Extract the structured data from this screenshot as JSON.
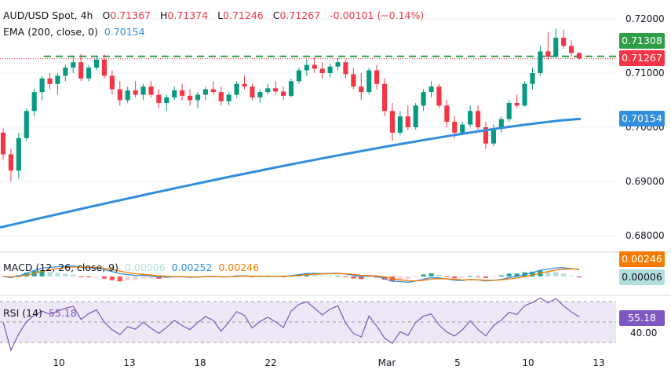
{
  "header": {
    "symbol": "AUD/USD Spot, 4h",
    "o_label": "O",
    "o_value": "0.71367",
    "h_label": "H",
    "h_value": "0.71374",
    "l_label": "L",
    "l_value": "0.71246",
    "c_label": "C",
    "c_value": "0.71267",
    "change": "-0.00101 (−0.14%)"
  },
  "ema": {
    "label": "EMA (200, close, 0)",
    "value": "0.70154"
  },
  "macd": {
    "label": "MACD (12, 26, close, 9)",
    "hist_value": "0.00006",
    "macd_value": "0.00252",
    "signal_value": "0.00246"
  },
  "rsi": {
    "label": "RSI (14)",
    "value": "55.18",
    "axis_tick": "40.00"
  },
  "price_tags": {
    "resistance": "0.71308",
    "close": "0.71267",
    "ema": "0.70154",
    "macd_signal": "0.00246",
    "macd_hist": "0.00006",
    "rsi": "55.18"
  },
  "colors": {
    "up": "#089981",
    "down": "#f23645",
    "ema": "#2f8fdd",
    "resistance": "#2e9e47",
    "macd": "#2f8fdd",
    "signal": "#f57c00",
    "rsi": "#7e57c2",
    "rsi_band": "#ede7f6"
  },
  "chart_data": {
    "type": "candlestick",
    "title": "AUD/USD Spot, 4h",
    "price_axis_ticks": [
      "0.72000",
      "0.71000",
      "0.70000",
      "0.69000",
      "0.68000"
    ],
    "time_axis_ticks": [
      "10",
      "13",
      "18",
      "22",
      "Mar",
      "5",
      "10",
      "13"
    ],
    "price_range": [
      0.6775,
      0.7225
    ],
    "resistance_level": 0.71308,
    "last_close": 0.71267,
    "ema200_last": 0.70154,
    "candles": [
      [
        0.699,
        0.6998,
        0.694,
        0.695
      ],
      [
        0.695,
        0.696,
        0.69,
        0.692
      ],
      [
        0.692,
        0.699,
        0.6905,
        0.698
      ],
      [
        0.698,
        0.7035,
        0.6975,
        0.703
      ],
      [
        0.703,
        0.707,
        0.702,
        0.7065
      ],
      [
        0.7065,
        0.7095,
        0.705,
        0.709
      ],
      [
        0.709,
        0.71,
        0.707,
        0.708
      ],
      [
        0.708,
        0.71,
        0.706,
        0.7095
      ],
      [
        0.7095,
        0.7115,
        0.7085,
        0.711
      ],
      [
        0.711,
        0.713,
        0.71,
        0.712
      ],
      [
        0.712,
        0.7135,
        0.7085,
        0.709
      ],
      [
        0.709,
        0.7115,
        0.7085,
        0.711
      ],
      [
        0.711,
        0.713,
        0.7105,
        0.7125
      ],
      [
        0.7125,
        0.7135,
        0.709,
        0.7095
      ],
      [
        0.7095,
        0.7105,
        0.706,
        0.707
      ],
      [
        0.707,
        0.7085,
        0.704,
        0.705
      ],
      [
        0.705,
        0.7075,
        0.7045,
        0.7068
      ],
      [
        0.7068,
        0.7085,
        0.7055,
        0.706
      ],
      [
        0.706,
        0.708,
        0.705,
        0.7075
      ],
      [
        0.7075,
        0.7085,
        0.7055,
        0.706
      ],
      [
        0.706,
        0.707,
        0.7035,
        0.7045
      ],
      [
        0.7045,
        0.706,
        0.703,
        0.7055
      ],
      [
        0.7055,
        0.7075,
        0.705,
        0.7068
      ],
      [
        0.7068,
        0.708,
        0.705,
        0.7058
      ],
      [
        0.7058,
        0.707,
        0.704,
        0.705
      ],
      [
        0.705,
        0.7065,
        0.7035,
        0.706
      ],
      [
        0.706,
        0.7075,
        0.705,
        0.707
      ],
      [
        0.707,
        0.7085,
        0.706,
        0.7065
      ],
      [
        0.7065,
        0.7075,
        0.704,
        0.7048
      ],
      [
        0.7048,
        0.7065,
        0.704,
        0.706
      ],
      [
        0.706,
        0.7085,
        0.7055,
        0.708
      ],
      [
        0.708,
        0.7095,
        0.707,
        0.7075
      ],
      [
        0.7075,
        0.708,
        0.705,
        0.7055
      ],
      [
        0.7055,
        0.707,
        0.7045,
        0.7065
      ],
      [
        0.7065,
        0.708,
        0.706,
        0.7072
      ],
      [
        0.7072,
        0.7085,
        0.706,
        0.7066
      ],
      [
        0.7066,
        0.7075,
        0.705,
        0.7058
      ],
      [
        0.7058,
        0.709,
        0.7055,
        0.7085
      ],
      [
        0.7085,
        0.711,
        0.708,
        0.7105
      ],
      [
        0.7105,
        0.7125,
        0.7095,
        0.7115
      ],
      [
        0.7115,
        0.713,
        0.71,
        0.7108
      ],
      [
        0.7108,
        0.712,
        0.709,
        0.71
      ],
      [
        0.71,
        0.7118,
        0.7092,
        0.7112
      ],
      [
        0.7112,
        0.7128,
        0.7105,
        0.712
      ],
      [
        0.712,
        0.7125,
        0.709,
        0.7098
      ],
      [
        0.7098,
        0.711,
        0.707,
        0.7075
      ],
      [
        0.7075,
        0.71,
        0.705,
        0.7065
      ],
      [
        0.7065,
        0.711,
        0.706,
        0.7105
      ],
      [
        0.7105,
        0.7115,
        0.707,
        0.708
      ],
      [
        0.708,
        0.709,
        0.702,
        0.703
      ],
      [
        0.703,
        0.7045,
        0.6975,
        0.699
      ],
      [
        0.699,
        0.703,
        0.6985,
        0.702
      ],
      [
        0.702,
        0.704,
        0.6995,
        0.7
      ],
      [
        0.7,
        0.7045,
        0.6995,
        0.704
      ],
      [
        0.704,
        0.707,
        0.703,
        0.7065
      ],
      [
        0.7065,
        0.7085,
        0.7055,
        0.7075
      ],
      [
        0.7075,
        0.708,
        0.7035,
        0.704
      ],
      [
        0.704,
        0.705,
        0.7,
        0.701
      ],
      [
        0.701,
        0.702,
        0.698,
        0.699
      ],
      [
        0.699,
        0.701,
        0.6985,
        0.7005
      ],
      [
        0.7005,
        0.704,
        0.7,
        0.703
      ],
      [
        0.703,
        0.704,
        0.6995,
        0.7
      ],
      [
        0.7,
        0.701,
        0.696,
        0.697
      ],
      [
        0.697,
        0.7005,
        0.6965,
        0.6998
      ],
      [
        0.6998,
        0.702,
        0.699,
        0.7015
      ],
      [
        0.7015,
        0.705,
        0.701,
        0.7045
      ],
      [
        0.7045,
        0.706,
        0.7035,
        0.704
      ],
      [
        0.704,
        0.7085,
        0.7038,
        0.708
      ],
      [
        0.708,
        0.711,
        0.707,
        0.71
      ],
      [
        0.71,
        0.715,
        0.7095,
        0.714
      ],
      [
        0.714,
        0.7175,
        0.7125,
        0.713
      ],
      [
        0.713,
        0.7182,
        0.7128,
        0.7165
      ],
      [
        0.7165,
        0.718,
        0.7145,
        0.715
      ],
      [
        0.715,
        0.716,
        0.713,
        0.7137
      ],
      [
        0.7137,
        0.7138,
        0.7125,
        0.7127
      ]
    ]
  }
}
